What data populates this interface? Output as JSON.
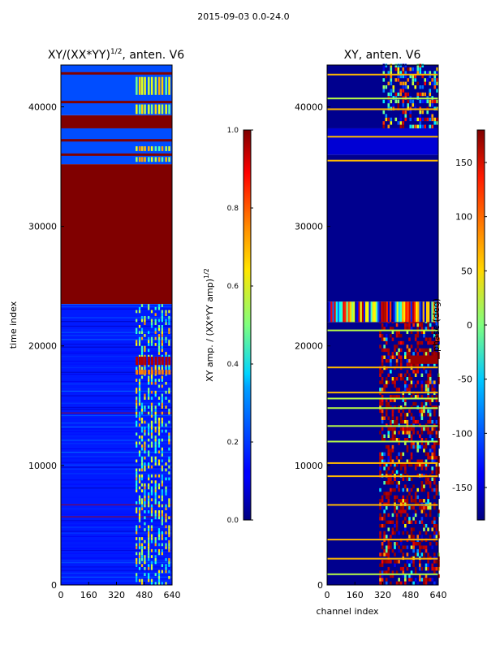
{
  "suptitle": "2015-09-03 0.0-24.0",
  "colors": {
    "cold": "#00007f",
    "hot": "#7f0000",
    "frame": "#000000"
  },
  "chart_data": [
    {
      "type": "heatmap",
      "title": "XY/(XX*YY)",
      "title_superscript": "1/2",
      "title_suffix": ", anten. V6",
      "xlabel": "",
      "ylabel": "time index",
      "xlim": [
        0,
        640
      ],
      "ylim": [
        0,
        43500
      ],
      "xticks": [
        0,
        160,
        320,
        480,
        640
      ],
      "yticks": [
        0,
        10000,
        20000,
        30000,
        40000
      ],
      "colormap": "jet",
      "colorbar": {
        "label": "XY amp. / (XX*YY amp)",
        "label_superscript": "1/2",
        "range": [
          0.0,
          1.0
        ],
        "ticks": [
          "0.0",
          "0.2",
          "0.4",
          "0.6",
          "0.8",
          "1.0"
        ]
      },
      "regions": [
        {
          "t0": 0,
          "t1": 23500,
          "value": 0.15,
          "note": "mostly low amplitude, bright structure at channels 420-620"
        },
        {
          "t0": 23500,
          "t1": 35200,
          "value": 1.0
        },
        {
          "t0": 35200,
          "t1": 38200,
          "value": 0.2
        },
        {
          "t0": 38200,
          "t1": 39300,
          "value": 1.0
        },
        {
          "t0": 39300,
          "t1": 43500,
          "value": 0.2
        }
      ]
    },
    {
      "type": "heatmap",
      "title": "XY, anten. V6",
      "xlabel": "channel index",
      "ylabel": "",
      "xlim": [
        0,
        640
      ],
      "ylim": [
        0,
        43500
      ],
      "xticks": [
        0,
        160,
        320,
        480,
        640
      ],
      "yticks": [
        0,
        10000,
        20000,
        30000,
        40000
      ],
      "colormap": "jet",
      "colorbar": {
        "label": "phase (deg)",
        "range": [
          -180,
          180
        ],
        "ticks": [
          "-150",
          "-100",
          "-50",
          "0",
          "50",
          "100",
          "150"
        ]
      },
      "regions": [
        {
          "t0": 0,
          "t1": 22000,
          "value": -175,
          "note": "noisy phase at channels 300-640"
        },
        {
          "t0": 22000,
          "t1": 23700,
          "value": 60
        },
        {
          "t0": 23700,
          "t1": 36000,
          "value": -175
        },
        {
          "t0": 36000,
          "t1": 38200,
          "value": -150
        },
        {
          "t0": 38200,
          "t1": 43500,
          "value": -175
        }
      ]
    }
  ]
}
